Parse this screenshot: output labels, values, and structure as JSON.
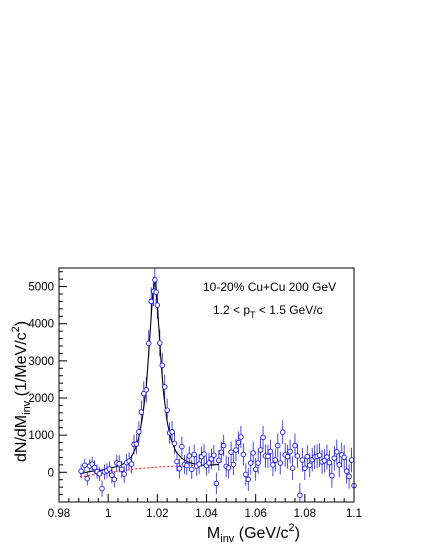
{
  "chart_data": {
    "type": "scatter",
    "title": "",
    "annotations": {
      "line1": "10-20% Cu+Cu 200 GeV",
      "line2_pre": "1.2 < p",
      "line2_sub": "T",
      "line2_post": " < 1.5 GeV/c"
    },
    "xlabel": {
      "main": "M",
      "sub": "inv",
      "post": " (GeV/c",
      "sup": "2",
      "close": ")"
    },
    "ylabel": {
      "pre": "dN/dM",
      "sub": "inv",
      "post": " (1/MeV/c",
      "sup": "2",
      "close": ")"
    },
    "xlim": [
      0.98,
      1.1
    ],
    "ylim": [
      -800,
      5500
    ],
    "x_ticks": [
      {
        "value": 0.98,
        "label": "0.98"
      },
      {
        "value": 1.0,
        "label": "1"
      },
      {
        "value": 1.02,
        "label": "1.02"
      },
      {
        "value": 1.04,
        "label": "1.04"
      },
      {
        "value": 1.06,
        "label": "1.06"
      },
      {
        "value": 1.08,
        "label": "1.08"
      },
      {
        "value": 1.1,
        "label": "1.1"
      }
    ],
    "y_ticks": [
      {
        "value": 0,
        "label": "0"
      },
      {
        "value": 1000,
        "label": "1000"
      },
      {
        "value": 2000,
        "label": "2000"
      },
      {
        "value": 3000,
        "label": "3000"
      },
      {
        "value": 4000,
        "label": "4000"
      },
      {
        "value": 5000,
        "label": "5000"
      }
    ],
    "grid": false,
    "colors": {
      "markers": "#1a1aff",
      "fit": "#000000",
      "background_fit": "#ff0000"
    },
    "series": [
      {
        "style": "open-circle-markers-with-error-bars",
        "points": [
          [
            0.989,
            30,
            180
          ],
          [
            0.9905,
            190,
            180
          ],
          [
            0.9915,
            -170,
            180
          ],
          [
            0.9925,
            170,
            180
          ],
          [
            0.9935,
            220,
            190
          ],
          [
            0.9945,
            130,
            190
          ],
          [
            0.9955,
            20,
            190
          ],
          [
            0.9965,
            -40,
            190
          ],
          [
            0.9975,
            -440,
            220
          ],
          [
            0.9985,
            10,
            200
          ],
          [
            0.9995,
            40,
            200
          ],
          [
            1.0005,
            90,
            200
          ],
          [
            1.0015,
            -80,
            220
          ],
          [
            1.0025,
            -190,
            220
          ],
          [
            1.0035,
            250,
            220
          ],
          [
            1.0045,
            230,
            230
          ],
          [
            1.0055,
            80,
            230
          ],
          [
            1.0065,
            -50,
            230
          ],
          [
            1.0075,
            260,
            240
          ],
          [
            1.0085,
            300,
            240
          ],
          [
            1.0095,
            220,
            240
          ],
          [
            1.0105,
            750,
            260
          ],
          [
            1.0115,
            760,
            270
          ],
          [
            1.0125,
            1090,
            290
          ],
          [
            1.0135,
            1620,
            310
          ],
          [
            1.0145,
            2120,
            330
          ],
          [
            1.0155,
            2220,
            340
          ],
          [
            1.0165,
            3470,
            360
          ],
          [
            1.0175,
            4600,
            380
          ],
          [
            1.0185,
            4870,
            390
          ],
          [
            1.019,
            5180,
            390
          ],
          [
            1.0195,
            4850,
            390
          ],
          [
            1.02,
            4500,
            380
          ],
          [
            1.021,
            3480,
            360
          ],
          [
            1.022,
            2880,
            340
          ],
          [
            1.023,
            2300,
            330
          ],
          [
            1.024,
            1670,
            310
          ],
          [
            1.025,
            1060,
            290
          ],
          [
            1.026,
            1090,
            290
          ],
          [
            1.027,
            780,
            280
          ],
          [
            1.028,
            290,
            270
          ],
          [
            1.029,
            100,
            260
          ],
          [
            1.03,
            690,
            270
          ],
          [
            1.031,
            210,
            260
          ],
          [
            1.032,
            180,
            260
          ],
          [
            1.033,
            440,
            260
          ],
          [
            1.034,
            80,
            260
          ],
          [
            1.035,
            480,
            270
          ],
          [
            1.036,
            170,
            270
          ],
          [
            1.037,
            220,
            270
          ],
          [
            1.038,
            420,
            270
          ],
          [
            1.039,
            490,
            270
          ],
          [
            1.04,
            180,
            270
          ],
          [
            1.041,
            250,
            280
          ],
          [
            1.042,
            360,
            280
          ],
          [
            1.043,
            460,
            280
          ],
          [
            1.044,
            -300,
            290
          ],
          [
            1.045,
            320,
            280
          ],
          [
            1.046,
            540,
            280
          ],
          [
            1.047,
            720,
            290
          ],
          [
            1.048,
            160,
            290
          ],
          [
            1.049,
            120,
            290
          ],
          [
            1.05,
            540,
            290
          ],
          [
            1.051,
            210,
            290
          ],
          [
            1.052,
            600,
            300
          ],
          [
            1.053,
            800,
            300
          ],
          [
            1.054,
            950,
            300
          ],
          [
            1.055,
            480,
            300
          ],
          [
            1.056,
            -60,
            300
          ],
          [
            1.057,
            -190,
            310
          ],
          [
            1.058,
            250,
            310
          ],
          [
            1.059,
            520,
            300
          ],
          [
            1.06,
            80,
            310
          ],
          [
            1.061,
            250,
            300
          ],
          [
            1.062,
            600,
            310
          ],
          [
            1.063,
            940,
            310
          ],
          [
            1.064,
            440,
            310
          ],
          [
            1.065,
            430,
            310
          ],
          [
            1.066,
            560,
            310
          ],
          [
            1.067,
            200,
            310
          ],
          [
            1.068,
            330,
            310
          ],
          [
            1.069,
            720,
            320
          ],
          [
            1.07,
            250,
            310
          ],
          [
            1.071,
            1080,
            320
          ],
          [
            1.072,
            470,
            320
          ],
          [
            1.073,
            420,
            320
          ],
          [
            1.074,
            560,
            320
          ],
          [
            1.075,
            110,
            320
          ],
          [
            1.076,
            720,
            320
          ],
          [
            1.077,
            440,
            320
          ],
          [
            1.078,
            -620,
            330
          ],
          [
            1.079,
            330,
            320
          ],
          [
            1.08,
            110,
            320
          ],
          [
            1.081,
            420,
            320
          ],
          [
            1.082,
            190,
            320
          ],
          [
            1.083,
            340,
            320
          ],
          [
            1.084,
            410,
            320
          ],
          [
            1.085,
            430,
            320
          ],
          [
            1.086,
            460,
            320
          ],
          [
            1.087,
            280,
            320
          ],
          [
            1.088,
            310,
            320
          ],
          [
            1.089,
            410,
            330
          ],
          [
            1.09,
            260,
            330
          ],
          [
            1.091,
            -90,
            330
          ],
          [
            1.092,
            380,
            330
          ],
          [
            1.093,
            550,
            330
          ],
          [
            1.094,
            200,
            330
          ],
          [
            1.095,
            470,
            330
          ],
          [
            1.096,
            400,
            330
          ],
          [
            1.097,
            30,
            330
          ],
          [
            1.098,
            -110,
            330
          ],
          [
            1.099,
            330,
            330
          ],
          [
            1.1,
            -360,
            330
          ]
        ]
      },
      {
        "style": "black-solid-fit-line",
        "points": [
          [
            0.9885,
            -40
          ],
          [
            0.9925,
            20
          ],
          [
            0.9965,
            50
          ],
          [
            1.0005,
            100
          ],
          [
            1.0045,
            180
          ],
          [
            1.0075,
            270
          ],
          [
            1.0095,
            420
          ],
          [
            1.011,
            620
          ],
          [
            1.0125,
            950
          ],
          [
            1.014,
            1500
          ],
          [
            1.0155,
            2300
          ],
          [
            1.0165,
            3200
          ],
          [
            1.0175,
            4200
          ],
          [
            1.0182,
            4850
          ],
          [
            1.0188,
            5170
          ],
          [
            1.0193,
            5150
          ],
          [
            1.0198,
            4800
          ],
          [
            1.0205,
            4000
          ],
          [
            1.0215,
            3000
          ],
          [
            1.0225,
            2150
          ],
          [
            1.024,
            1350
          ],
          [
            1.0255,
            900
          ],
          [
            1.0275,
            560
          ],
          [
            1.03,
            370
          ],
          [
            1.033,
            260
          ],
          [
            1.037,
            200
          ],
          [
            1.041,
            190
          ],
          [
            1.045,
            210
          ]
        ]
      },
      {
        "style": "red-dashed-background-line",
        "points": [
          [
            0.9885,
            -120
          ],
          [
            1.0,
            -5
          ],
          [
            1.01,
            85
          ],
          [
            1.02,
            140
          ],
          [
            1.03,
            175
          ],
          [
            1.038,
            190
          ],
          [
            1.045,
            205
          ]
        ]
      }
    ]
  }
}
